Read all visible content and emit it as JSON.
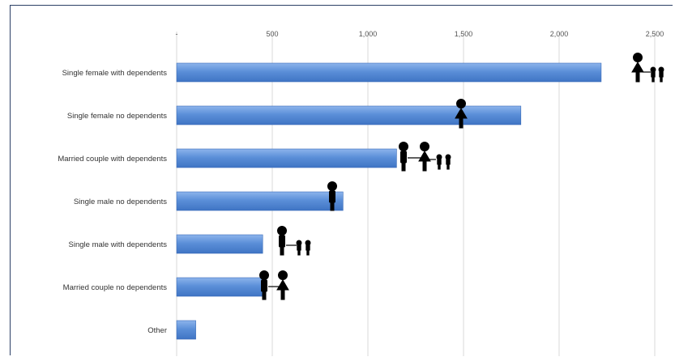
{
  "chart_data": {
    "type": "bar",
    "orientation": "horizontal",
    "title": "",
    "xlabel": "",
    "ylabel": "",
    "xlim": [
      0,
      2500
    ],
    "x_ticks": [
      {
        "value": 0,
        "label": "-"
      },
      {
        "value": 500,
        "label": "500"
      },
      {
        "value": 1000,
        "label": "1,000"
      },
      {
        "value": 1500,
        "label": "1,500"
      },
      {
        "value": 2000,
        "label": "2,000"
      },
      {
        "value": 2500,
        "label": "2,500"
      }
    ],
    "grid": true,
    "bar_color": "#5b8fd8",
    "categories": [
      "Single female with dependents",
      "Single female no dependents",
      "Married couple with dependents",
      "Single male no dependents",
      "Single male with dependents",
      "Married couple no dependents",
      "Other"
    ],
    "values": [
      2220,
      1800,
      1150,
      870,
      450,
      460,
      100
    ],
    "icons": [
      "woman-with-two-children-icon",
      "woman-icon",
      "couple-with-two-children-icon",
      "man-icon",
      "man-with-two-children-icon",
      "couple-icon",
      ""
    ]
  }
}
